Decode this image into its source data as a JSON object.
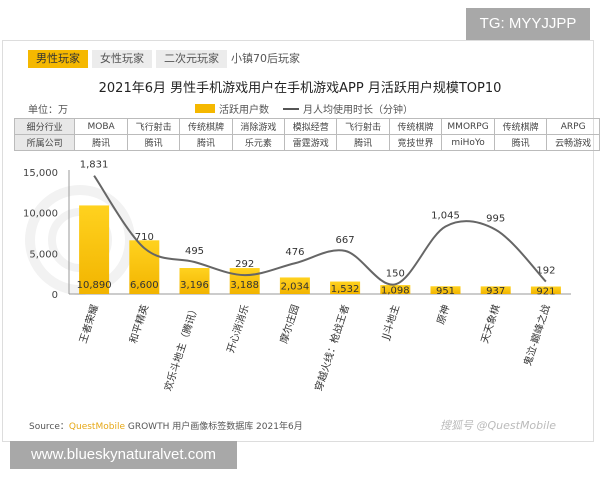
{
  "watermark_top": "TG: MYYJJPP",
  "watermark_bottom": "www.blueskynaturalvet.com",
  "tabs": [
    "男性玩家",
    "女性玩家",
    "二次元玩家",
    "小镇70后玩家"
  ],
  "unit": "单位：万",
  "table": {
    "row1_header": "细分行业",
    "row1": [
      "MOBA",
      "飞行射击",
      "传统棋牌",
      "消除游戏",
      "模拟经营",
      "飞行射击",
      "传统棋牌",
      "MMORPG",
      "传统棋牌",
      "ARPG"
    ],
    "row2_header": "所属公司",
    "row2": [
      "腾讯",
      "腾讯",
      "腾讯",
      "乐元素",
      "雷霆游戏",
      "腾讯",
      "竞技世界",
      "miHoYo",
      "腾讯",
      "云畅游戏"
    ]
  },
  "source": {
    "prefix": "Source：",
    "brand": "QuestMobile",
    "rest": " GROWTH 用户画像标签数据库 2021年6月"
  },
  "credit": "搜狐号 @QuestMobile",
  "colors": {
    "bar": "#f5b800",
    "line": "#666666",
    "accent": "#f5b800"
  },
  "chart_data": {
    "type": "bar",
    "title": "2021年6月 男性手机游戏用户在手机游戏APP 月活跃用户规模TOP10",
    "categories": [
      "王者荣耀",
      "和平精英",
      "欢乐斗地主（腾讯）",
      "开心消消乐",
      "摩尔庄园",
      "穿越火线：枪战王者",
      "JJ斗地主",
      "原神",
      "天天象棋",
      "鬼泣-巅峰之战"
    ],
    "series": [
      {
        "name": "活跃用户数",
        "type": "bar",
        "values": [
          10890,
          6600,
          3196,
          3188,
          2034,
          1532,
          1098,
          951,
          937,
          921
        ]
      },
      {
        "name": "月人均使用时长（分钟）",
        "type": "line",
        "values": [
          1831,
          710,
          495,
          292,
          476,
          667,
          150,
          1045,
          995,
          192
        ]
      }
    ],
    "yticks": [
      "0",
      "5,000",
      "10,000",
      "15,000"
    ],
    "ylim": [
      0,
      15000
    ],
    "y2lim": [
      0,
      1950
    ],
    "legend": "top-center"
  }
}
